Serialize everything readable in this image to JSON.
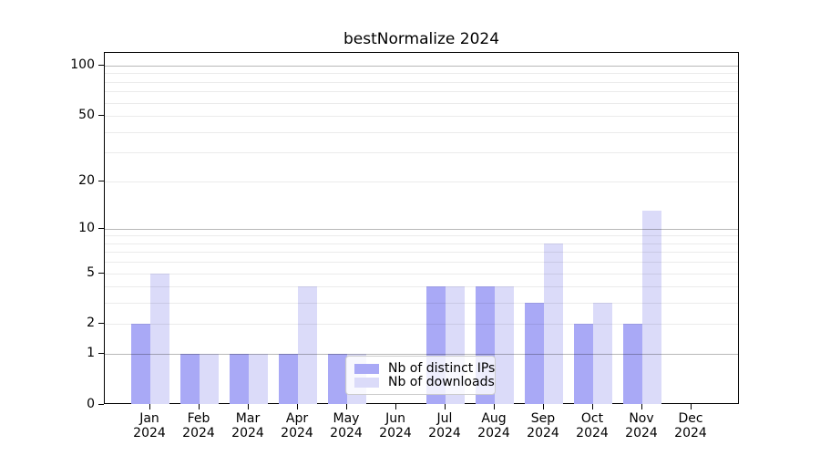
{
  "title": "bestNormalize 2024",
  "chart_data": {
    "type": "bar",
    "title": "bestNormalize 2024",
    "categories": [
      "Jan 2024",
      "Feb 2024",
      "Mar 2024",
      "Apr 2024",
      "May 2024",
      "Jun 2024",
      "Jul 2024",
      "Aug 2024",
      "Sep 2024",
      "Oct 2024",
      "Nov 2024",
      "Dec 2024"
    ],
    "series": [
      {
        "name": "Nb of distinct IPs",
        "color": "#a9a9f6",
        "values": [
          2,
          1,
          1,
          1,
          1,
          0,
          4,
          4,
          3,
          2,
          2,
          0
        ]
      },
      {
        "name": "Nb of downloads",
        "color": "#dbdbf9",
        "values": [
          5,
          1,
          1,
          4,
          1,
          0,
          4,
          4,
          8,
          3,
          13,
          0
        ]
      }
    ],
    "xlabel": "",
    "ylabel": "",
    "y_scale": "log1p",
    "ylim": [
      0,
      120
    ],
    "y_ticks": [
      0,
      1,
      2,
      5,
      10,
      20,
      50,
      100
    ],
    "grid": {
      "major_lines": [
        1,
        10,
        100
      ],
      "minor_lines": [
        2,
        3,
        4,
        5,
        6,
        7,
        8,
        9,
        20,
        30,
        40,
        50,
        60,
        70,
        80,
        90
      ]
    },
    "legend_position": "bottom-center",
    "legend_entries": [
      "Nb of distinct IPs",
      "Nb of downloads"
    ]
  },
  "colors": {
    "bar_ips": "#a9a9f6",
    "bar_downloads": "#dbdbf9",
    "grid_major": "#b9b9b9",
    "grid_minor": "#ececec",
    "axis": "#000000",
    "background": "#ffffff"
  }
}
